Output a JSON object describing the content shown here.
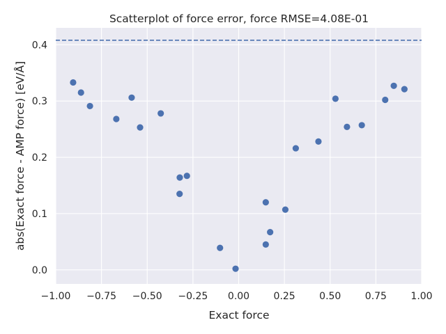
{
  "chart_data": {
    "type": "scatter",
    "title": "Scatterplot of force error, force RMSE=4.08E-01",
    "xlabel": "Exact force",
    "ylabel": "abs(Exact force - AMP force) [eV/Å]",
    "xlim": [
      -1.0,
      1.0
    ],
    "ylim": [
      -0.025,
      0.43
    ],
    "xticks": [
      -1.0,
      -0.75,
      -0.5,
      -0.25,
      0.0,
      0.25,
      0.5,
      0.75,
      1.0
    ],
    "xtick_labels": [
      "−1.00",
      "−0.75",
      "−0.50",
      "−0.25",
      "0.00",
      "0.25",
      "0.50",
      "0.75",
      "1.00"
    ],
    "yticks": [
      0.0,
      0.1,
      0.2,
      0.3,
      0.4
    ],
    "ytick_labels": [
      "0.0",
      "0.1",
      "0.2",
      "0.3",
      "0.4"
    ],
    "grid": true,
    "reference_line": {
      "y": 0.408,
      "style": "dashed"
    },
    "colors": {
      "points": "#4c72b0",
      "reference_line": "#4c72b0",
      "plot_background": "#eaeaf2",
      "grid": "#ffffff"
    },
    "x": [
      -0.905,
      -0.862,
      -0.813,
      -0.669,
      -0.585,
      -0.539,
      -0.426,
      -0.323,
      -0.322,
      -0.283,
      -0.102,
      -0.017,
      0.148,
      0.148,
      0.172,
      0.255,
      0.312,
      0.436,
      0.529,
      0.592,
      0.673,
      0.801,
      0.848,
      0.906
    ],
    "y": [
      0.333,
      0.315,
      0.291,
      0.268,
      0.306,
      0.253,
      0.278,
      0.135,
      0.164,
      0.167,
      0.039,
      0.002,
      0.045,
      0.12,
      0.067,
      0.107,
      0.216,
      0.228,
      0.304,
      0.254,
      0.257,
      0.302,
      0.327,
      0.321
    ]
  }
}
